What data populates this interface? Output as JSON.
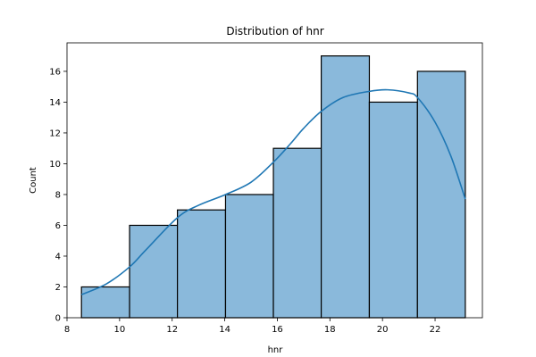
{
  "chart_data": {
    "type": "bar",
    "title": "Distribution of hnr",
    "xlabel": "hnr",
    "ylabel": "Count",
    "xlim": [
      8.0,
      23.8
    ],
    "ylim": [
      0,
      17.85
    ],
    "xticks": [
      8,
      10,
      12,
      14,
      16,
      18,
      20,
      22
    ],
    "yticks": [
      0,
      2,
      4,
      6,
      8,
      10,
      12,
      14,
      16
    ],
    "bins": [
      {
        "x0": 8.55,
        "x1": 10.38,
        "count": 2
      },
      {
        "x0": 10.38,
        "x1": 12.2,
        "count": 6
      },
      {
        "x0": 12.2,
        "x1": 14.03,
        "count": 7
      },
      {
        "x0": 14.03,
        "x1": 15.85,
        "count": 8
      },
      {
        "x0": 15.85,
        "x1": 17.67,
        "count": 11
      },
      {
        "x0": 17.67,
        "x1": 19.5,
        "count": 17
      },
      {
        "x0": 19.5,
        "x1": 21.33,
        "count": 14
      },
      {
        "x0": 21.33,
        "x1": 23.15,
        "count": 16
      }
    ],
    "kde": {
      "x": [
        8.55,
        9.5,
        10.38,
        11.0,
        12.2,
        13.0,
        14.03,
        15.0,
        15.85,
        16.5,
        17.0,
        17.67,
        18.5,
        19.5,
        20.2,
        21.0,
        21.33,
        22.0,
        22.6,
        23.15
      ],
      "y": [
        1.5,
        2.2,
        3.3,
        4.4,
        6.5,
        7.3,
        8.0,
        8.8,
        10.1,
        11.3,
        12.3,
        13.4,
        14.3,
        14.7,
        14.8,
        14.6,
        14.3,
        12.7,
        10.5,
        7.7
      ]
    },
    "bar_color": "#8ab9db",
    "bar_edge_color": "#000000",
    "line_color": "#1f77b4",
    "grid": false,
    "legend": "none"
  }
}
